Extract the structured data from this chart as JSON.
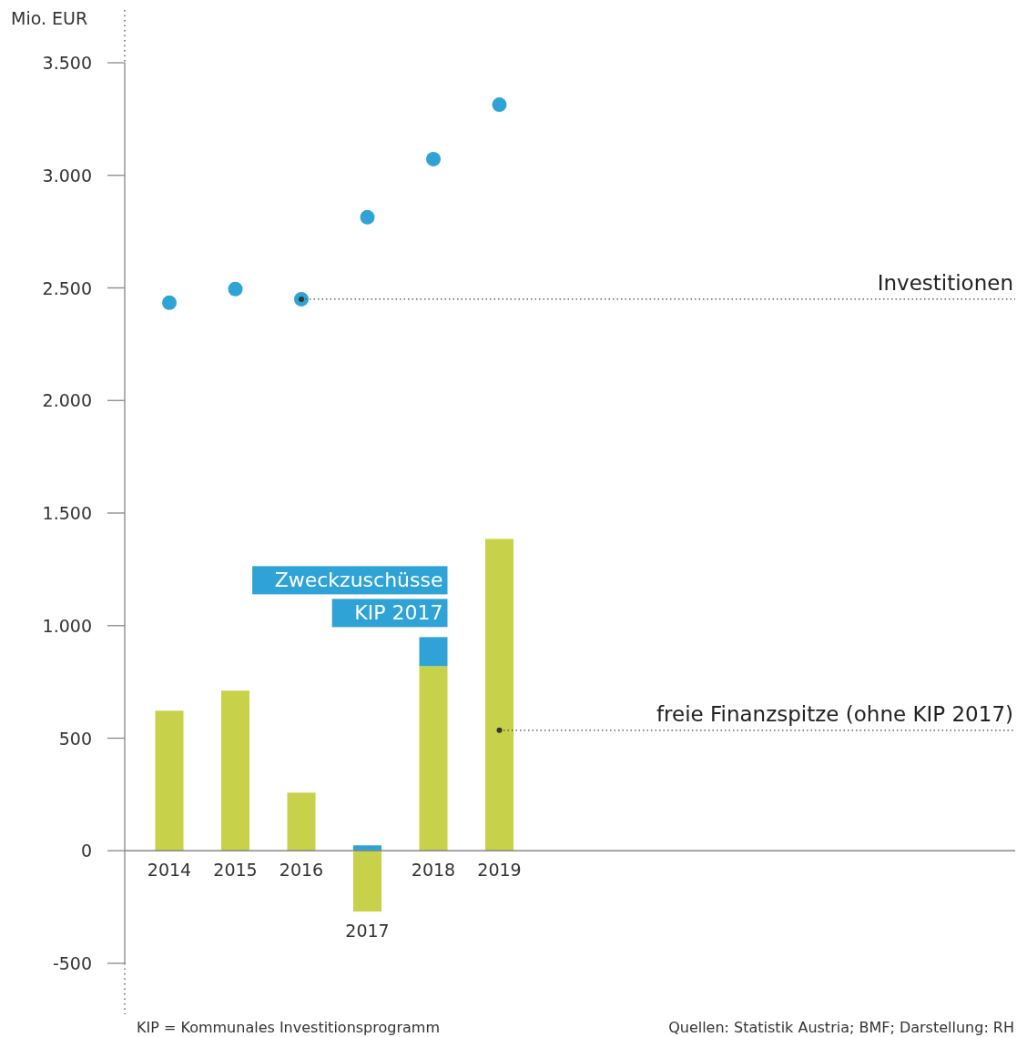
{
  "chart_data": {
    "type": "bar",
    "stacked": true,
    "ylabel": "Mio. EUR",
    "categories": [
      "2014",
      "2015",
      "2016",
      "2017",
      "2018",
      "2019"
    ],
    "series": [
      {
        "color": "#c8d14a",
        "values": [
          622,
          711,
          258,
          -270,
          820,
          1385
        ]
      },
      {
        "name": "Zweckzuschüsse KIP 2017",
        "color": "#2fa3d6",
        "values": [
          null,
          null,
          null,
          24,
          129,
          null
        ]
      },
      {
        "type": "scatter",
        "color": "#2fa3d6",
        "values": [
          2434,
          2495,
          2450,
          2814,
          3072,
          3314
        ]
      }
    ],
    "ylim": [
      -500,
      3500
    ],
    "yticks": [
      {
        "value": -500,
        "label": "-500"
      },
      0,
      {
        "value": 500,
        "label": "500"
      },
      {
        "value": 1000,
        "label": "1.000"
      },
      {
        "value": 1500,
        "label": "1.500"
      },
      {
        "value": 2000,
        "label": "2.000"
      },
      {
        "value": 2500,
        "label": "2.500"
      },
      {
        "value": 3000,
        "label": "3.000"
      },
      {
        "value": 3500,
        "label": "3.500"
      }
    ],
    "grid": false,
    "marker": "circle",
    "annotations": [
      {
        "text": "Investitionen",
        "x": "2016",
        "y": 2450
      },
      {
        "text": "freie Finanzspitze (ohne KIP 2017)",
        "x": "2019",
        "y": 535
      },
      "KIP = Kommunales Investitionsprogramm",
      "Quellen: Statistik Austria; BMF; Darstellung: RH"
    ]
  }
}
